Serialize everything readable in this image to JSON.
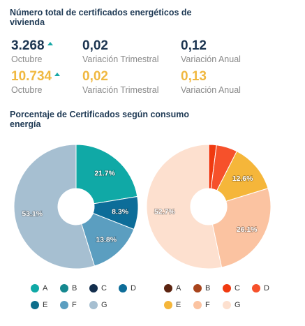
{
  "header": {
    "title": "Número total de certificados energéticos de vivienda"
  },
  "stats": {
    "row1": [
      {
        "value": "3.268",
        "label": "Octubre",
        "arrow": "up"
      },
      {
        "value": "0,02",
        "label": "Variación Trimestral"
      },
      {
        "value": "0,12",
        "label": "Variación Anual"
      }
    ],
    "row2": [
      {
        "value": "10.734",
        "label": "Octubre",
        "arrow": "up"
      },
      {
        "value": "0,02",
        "label": "Variación Trimestral"
      },
      {
        "value": "0,13",
        "label": "Variación Anual"
      }
    ]
  },
  "section": {
    "title": "Porcentaje de Certificados según consumo energía"
  },
  "chart_data": [
    {
      "type": "pie",
      "donut": true,
      "categories": [
        "A",
        "B",
        "C",
        "D",
        "E",
        "F",
        "G"
      ],
      "values": [
        21.7,
        0,
        0,
        8.3,
        0,
        13.8,
        53.1
      ],
      "labels": [
        "21.7%",
        "",
        "",
        "8.3%",
        "",
        "13.8%",
        "53.1%"
      ],
      "colors": [
        "#10a9a6",
        "#15888f",
        "#132e4d",
        "#0d6d99",
        "#0e6f8c",
        "#5b9ec0",
        "#a6bfd1"
      ],
      "legend": "bottom"
    },
    {
      "type": "pie",
      "donut": true,
      "categories": [
        "A",
        "B",
        "C",
        "D",
        "E",
        "F",
        "G"
      ],
      "values": [
        0,
        0,
        2.0,
        5.4,
        12.6,
        26.1,
        52.7
      ],
      "labels": [
        "",
        "",
        "",
        "",
        "12.6%",
        "26.1%",
        "52.7%"
      ],
      "colors": [
        "#5b2310",
        "#a8441c",
        "#f03a10",
        "#f6512b",
        "#f5b63a",
        "#fbc3a1",
        "#fde0cf"
      ],
      "legend": "bottom"
    }
  ]
}
